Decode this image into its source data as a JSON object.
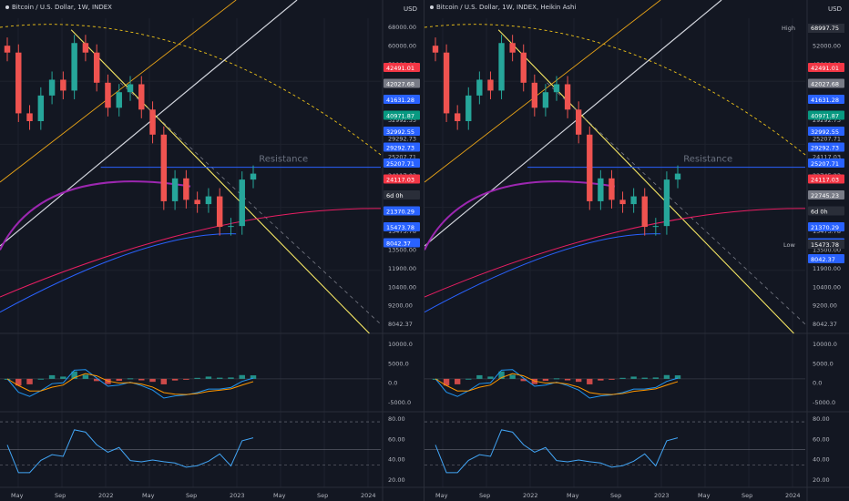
{
  "currency": "USD",
  "annotation_text": "Resistance",
  "charts": [
    {
      "symbol_title": "Bitcoin / U.S. Dollar, 1W, INDEX",
      "price_labels": [
        "68000.00",
        "60000.00",
        "52000.00",
        "45000.00",
        "38500.00",
        "32992.55",
        "29292.73",
        "25207.71",
        "24117.03",
        "21370.29",
        "18500.00",
        "15473.78",
        "13500.00",
        "11900.00",
        "10400.00",
        "9200.00",
        "8042.37"
      ],
      "price_tags": [
        {
          "text": "42491.01",
          "color": "#f23645"
        },
        {
          "text": "42027.68",
          "color": "#787b86"
        },
        {
          "text": "41631.28",
          "color": "#2962ff"
        },
        {
          "text": "40971.87",
          "color": "#089981"
        },
        {
          "text": "32992.55",
          "color": "#2962ff"
        },
        {
          "text": "29292.73",
          "color": "#2962ff"
        },
        {
          "text": "25207.71",
          "color": "#2962ff"
        },
        {
          "text": "24117.03",
          "color": "#f23645"
        },
        {
          "text": "6d 0h",
          "color": "#2a2e39"
        },
        {
          "text": "21370.29",
          "color": "#2962ff"
        },
        {
          "text": "15473.78",
          "color": "#2962ff"
        },
        {
          "text": "8042.37",
          "color": "#2962ff"
        }
      ],
      "macd_labels": [
        "10000.0",
        "5000.0",
        "0.0",
        "-5000.0"
      ],
      "rsi_labels": [
        "80.00",
        "60.00",
        "40.00",
        "20.00"
      ],
      "time_labels": [
        "May",
        "Sep",
        "2022",
        "May",
        "Sep",
        "2023",
        "May",
        "Sep",
        "2024"
      ]
    },
    {
      "symbol_title": "Bitcoin / U.S. Dollar, 1W, INDEX, Heikin Ashi",
      "high_label": "High",
      "high_value": "68997.75",
      "low_label": "Low",
      "low_value": "15473.78",
      "price_labels": [
        "60000.00",
        "52000.00",
        "45000.00",
        "38500.00",
        "32992.55",
        "29292.73",
        "25207.71",
        "24117.03",
        "22745.23",
        "21370.29",
        "18500.00",
        "15473.78",
        "13500.00",
        "11900.00",
        "10400.00",
        "9200.00",
        "8042.37"
      ],
      "price_tags": [
        {
          "text": "42491.01",
          "color": "#f23645"
        },
        {
          "text": "42027.68",
          "color": "#787b86"
        },
        {
          "text": "41631.28",
          "color": "#2962ff"
        },
        {
          "text": "40971.87",
          "color": "#089981"
        },
        {
          "text": "32992.55",
          "color": "#2962ff"
        },
        {
          "text": "29292.73",
          "color": "#2962ff"
        },
        {
          "text": "25207.71",
          "color": "#2962ff"
        },
        {
          "text": "24117.03",
          "color": "#f23645"
        },
        {
          "text": "22745.23",
          "color": "#787b86"
        },
        {
          "text": "6d 0h",
          "color": "#2a2e39"
        },
        {
          "text": "21370.29",
          "color": "#2962ff"
        },
        {
          "text": "15473.78",
          "color": "#2962ff"
        },
        {
          "text": "8042.37",
          "color": "#2962ff"
        }
      ],
      "macd_labels": [
        "10000.0",
        "5000.0",
        "0.0",
        "-5000.0"
      ],
      "rsi_labels": [
        "80.00",
        "60.00",
        "40.00",
        "20.00"
      ],
      "time_labels": [
        "May",
        "Sep",
        "2022",
        "May",
        "Sep",
        "2023",
        "May",
        "Sep",
        "2024"
      ]
    }
  ],
  "chart_data": {
    "type": "line",
    "x": [
      "2021-04",
      "2021-05",
      "2021-06",
      "2021-07",
      "2021-08",
      "2021-09",
      "2021-10",
      "2021-11",
      "2021-12",
      "2022-01",
      "2022-02",
      "2022-03",
      "2022-04",
      "2022-05",
      "2022-06",
      "2022-07",
      "2022-08",
      "2022-09",
      "2022-10",
      "2022-11",
      "2022-12",
      "2023-01",
      "2023-02"
    ],
    "series": [
      {
        "values": [
          57000,
          37000,
          35000,
          42000,
          47000,
          43500,
          61000,
          57000,
          46000,
          38500,
          43000,
          45500,
          38000,
          31800,
          19800,
          23300,
          20000,
          19400,
          20500,
          16500,
          16600,
          23100,
          24100
        ]
      },
      {
        "values": [
          null,
          null,
          null,
          null,
          null,
          null,
          null,
          null,
          null,
          null,
          null,
          null,
          null,
          null,
          null,
          null,
          null,
          null,
          null,
          null,
          null,
          null,
          null
        ]
      }
    ],
    "ylim": [
      8042.37,
      70000
    ],
    "ylabel": "USD",
    "log_scale": true,
    "grid": true,
    "colors": {
      "up": "#26a69a",
      "down": "#ef5350",
      "macd": "#2196f3",
      "signal": "#ff9800",
      "rsi": "#42a5f5"
    }
  }
}
